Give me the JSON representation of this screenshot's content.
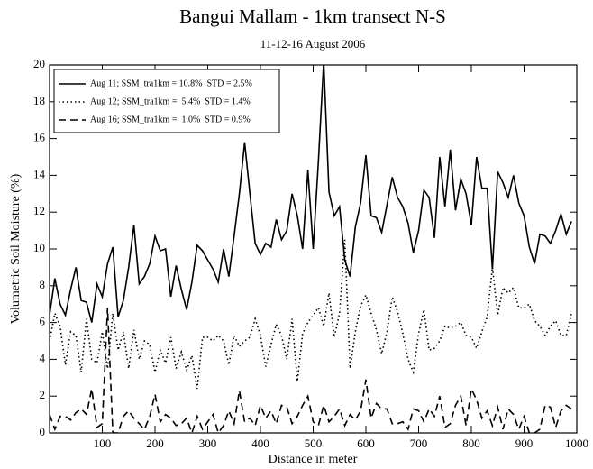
{
  "chart_data": {
    "type": "line",
    "title": "Bangui Mallam - 1km transect N-S",
    "subtitle": "11-12-16 August 2006",
    "xlabel": "Distance in meter",
    "ylabel": "Volumetric Soil Moisture (%)",
    "xlim": [
      0,
      1000
    ],
    "ylim": [
      0,
      20
    ],
    "xticks": [
      100,
      200,
      300,
      400,
      500,
      600,
      700,
      800,
      900,
      1000
    ],
    "yticks": [
      0,
      2,
      4,
      6,
      8,
      10,
      12,
      14,
      16,
      18,
      20
    ],
    "legend": "upper left",
    "x": [
      0,
      10,
      20,
      30,
      40,
      50,
      60,
      70,
      80,
      90,
      100,
      110,
      120,
      130,
      140,
      150,
      160,
      170,
      180,
      190,
      200,
      210,
      220,
      230,
      240,
      250,
      260,
      270,
      280,
      290,
      300,
      310,
      320,
      330,
      340,
      350,
      360,
      370,
      380,
      390,
      400,
      410,
      420,
      430,
      440,
      450,
      460,
      470,
      480,
      490,
      500,
      510,
      520,
      530,
      540,
      550,
      560,
      570,
      580,
      590,
      600,
      610,
      620,
      630,
      640,
      650,
      660,
      670,
      680,
      690,
      700,
      710,
      720,
      730,
      740,
      750,
      760,
      770,
      780,
      790,
      800,
      810,
      820,
      830,
      840,
      850,
      860,
      870,
      880,
      890,
      900,
      910,
      920,
      930,
      940,
      950,
      960,
      970,
      980,
      990
    ],
    "series": [
      {
        "name": "Aug 11; SSM_tra1km = 10.8%  STD = 2.5%",
        "color": "#000000",
        "line_style": "solid",
        "values": [
          6.4,
          8.4,
          7,
          6.4,
          7.8,
          9,
          7.2,
          7.1,
          6,
          8.1,
          7.4,
          9.2,
          10.1,
          6.3,
          7.2,
          9,
          11.3,
          8.1,
          8.5,
          9.2,
          10.7,
          9.9,
          10,
          7.4,
          9.1,
          7.8,
          6.7,
          8.2,
          10.2,
          9.9,
          9.4,
          8.9,
          8.2,
          10,
          8.5,
          10.7,
          13,
          15.8,
          13,
          10.3,
          9.7,
          10.3,
          10.1,
          11.6,
          10.5,
          11,
          13,
          11.8,
          10,
          14.3,
          10,
          14.8,
          20.2,
          13.1,
          11.8,
          12.3,
          9.4,
          8.5,
          11.2,
          12.5,
          15.1,
          11.8,
          11.7,
          10.9,
          12.4,
          13.9,
          12.8,
          12.3,
          11.4,
          9.8,
          11,
          13.2,
          12.8,
          10.6,
          15,
          12.3,
          15.4,
          12.1,
          13.8,
          13,
          11.3,
          15,
          13.3,
          13.3,
          8.9,
          14.2,
          13.6,
          12.8,
          14,
          12.5,
          11.8,
          10.1,
          9.2,
          10.8,
          10.7,
          10.3,
          11,
          11.9,
          10.8,
          11.5
        ]
      },
      {
        "name": "Aug 12; SSM_tra1km =  5.4%  STD = 1.4%",
        "color": "#000000",
        "line_style": "dotted",
        "values": [
          5,
          6.5,
          5.8,
          3.7,
          5.5,
          5.3,
          3.3,
          6.2,
          4,
          3.8,
          5.5,
          3.5,
          6.5,
          4.5,
          5.5,
          3.5,
          5.6,
          4,
          5,
          4.8,
          3.3,
          4.5,
          3.8,
          5.2,
          3.5,
          4.4,
          3.4,
          4.2,
          2.4,
          5.2,
          5.2,
          5,
          5.3,
          5,
          3.7,
          5.3,
          4.7,
          5,
          5.2,
          6.2,
          5.3,
          3.6,
          4.8,
          5.9,
          5.3,
          4,
          6.2,
          2.8,
          5.4,
          6,
          6.4,
          6.8,
          5.8,
          7.6,
          5.2,
          6.5,
          10.5,
          3.5,
          5.5,
          6.9,
          7.5,
          6.5,
          5.6,
          4.3,
          5.5,
          7.4,
          6.6,
          5.4,
          4,
          3.3,
          5.4,
          6.7,
          4.5,
          4.6,
          5,
          5.8,
          5.7,
          5.8,
          6,
          5.3,
          5.2,
          4.6,
          5.5,
          6.3,
          9,
          6.4,
          7.9,
          7.6,
          7.9,
          6.8,
          6.8,
          7,
          6.1,
          5.8,
          5.3,
          5.8,
          6.1,
          5.3,
          5.3,
          6.5
        ]
      },
      {
        "name": "Aug 16; SSM_tra1km =  1.0%  STD = 0.9%",
        "color": "#000000",
        "line_style": "dashed",
        "values": [
          1,
          0.2,
          0.9,
          0.9,
          0.7,
          1.1,
          1.3,
          1,
          2.4,
          0.3,
          0.5,
          6.8,
          0,
          0,
          0.9,
          1.2,
          0.8,
          0.5,
          0.2,
          0.9,
          2.1,
          0.6,
          1,
          0.8,
          0.4,
          0.5,
          0.8,
          0,
          0.9,
          0.2,
          0.6,
          1,
          0,
          0.4,
          1.2,
          0.5,
          2.3,
          0.6,
          0.8,
          0.4,
          1.5,
          0.8,
          1.2,
          0.5,
          1.5,
          1.4,
          0.5,
          0.9,
          1.5,
          2,
          0.6,
          0.4,
          1.5,
          0.6,
          0.9,
          1.3,
          0.4,
          1,
          0.7,
          1.2,
          2.9,
          0.8,
          1.6,
          1.3,
          1.3,
          0.5,
          0.5,
          0.6,
          0.2,
          1.3,
          1.2,
          0.6,
          1.3,
          0.9,
          2,
          0.3,
          0.5,
          1.5,
          2,
          0.4,
          2.4,
          1.8,
          0.8,
          1.2,
          0.4,
          1.4,
          0.2,
          1.3,
          1,
          0.2,
          0.9,
          0,
          0,
          0.2,
          1.5,
          1.4,
          0.3,
          1.2,
          1.5,
          1.3
        ]
      }
    ]
  }
}
